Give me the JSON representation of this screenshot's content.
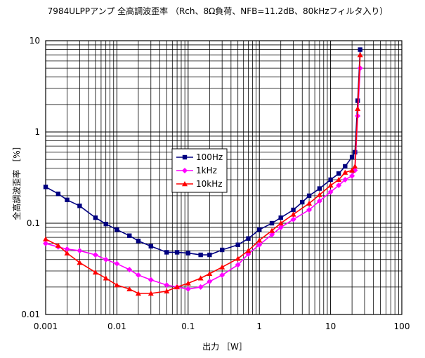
{
  "chart_data": {
    "type": "line",
    "title": "7984ULPPアンプ 全高調波歪率 （Rch、8Ω負荷、NFB=11.2dB、80kHzフィルタ入り）",
    "xlabel": "出力 ［W］",
    "ylabel": "全高調波歪率 ［%］",
    "x_scale": "log",
    "y_scale": "log",
    "xlim": [
      0.001,
      100
    ],
    "ylim": [
      0.01,
      10
    ],
    "x_ticks": [
      {
        "value": 0.001,
        "label": "0.001"
      },
      {
        "value": 0.01,
        "label": "0.01"
      },
      {
        "value": 0.1,
        "label": "0.1"
      },
      {
        "value": 1,
        "label": "1"
      },
      {
        "value": 10,
        "label": "10"
      },
      {
        "value": 100,
        "label": "100"
      }
    ],
    "y_ticks": [
      {
        "value": 10,
        "label": "10"
      },
      {
        "value": 1,
        "label": "1"
      },
      {
        "value": 0.1,
        "label": "0.1"
      },
      {
        "value": 0.01,
        "label": "0.01"
      }
    ],
    "grid": true,
    "legend_position": "center-left",
    "series": [
      {
        "name": "100Hz",
        "color": "#000080",
        "marker": "square",
        "points": [
          [
            0.001,
            0.25
          ],
          [
            0.0015,
            0.21
          ],
          [
            0.002,
            0.18
          ],
          [
            0.003,
            0.155
          ],
          [
            0.005,
            0.115
          ],
          [
            0.007,
            0.098
          ],
          [
            0.01,
            0.085
          ],
          [
            0.015,
            0.073
          ],
          [
            0.02,
            0.064
          ],
          [
            0.03,
            0.056
          ],
          [
            0.05,
            0.048
          ],
          [
            0.07,
            0.048
          ],
          [
            0.1,
            0.047
          ],
          [
            0.15,
            0.045
          ],
          [
            0.2,
            0.045
          ],
          [
            0.3,
            0.051
          ],
          [
            0.5,
            0.058
          ],
          [
            0.7,
            0.068
          ],
          [
            1,
            0.085
          ],
          [
            1.5,
            0.1
          ],
          [
            2,
            0.115
          ],
          [
            3,
            0.14
          ],
          [
            4,
            0.17
          ],
          [
            5,
            0.2
          ],
          [
            7,
            0.24
          ],
          [
            10,
            0.3
          ],
          [
            13,
            0.35
          ],
          [
            16,
            0.42
          ],
          [
            20,
            0.53
          ],
          [
            22,
            0.6
          ],
          [
            24,
            2.2
          ],
          [
            26,
            8.0
          ]
        ]
      },
      {
        "name": "1kHz",
        "color": "#ff00ff",
        "marker": "diamond",
        "points": [
          [
            0.001,
            0.06
          ],
          [
            0.0015,
            0.055
          ],
          [
            0.002,
            0.052
          ],
          [
            0.003,
            0.05
          ],
          [
            0.005,
            0.045
          ],
          [
            0.007,
            0.04
          ],
          [
            0.01,
            0.036
          ],
          [
            0.015,
            0.031
          ],
          [
            0.02,
            0.027
          ],
          [
            0.03,
            0.024
          ],
          [
            0.05,
            0.021
          ],
          [
            0.07,
            0.02
          ],
          [
            0.1,
            0.019
          ],
          [
            0.15,
            0.02
          ],
          [
            0.2,
            0.023
          ],
          [
            0.3,
            0.027
          ],
          [
            0.5,
            0.035
          ],
          [
            0.7,
            0.046
          ],
          [
            1,
            0.058
          ],
          [
            1.5,
            0.075
          ],
          [
            2,
            0.09
          ],
          [
            3,
            0.11
          ],
          [
            5,
            0.14
          ],
          [
            7,
            0.175
          ],
          [
            10,
            0.22
          ],
          [
            13,
            0.26
          ],
          [
            16,
            0.3
          ],
          [
            20,
            0.33
          ],
          [
            22,
            0.38
          ],
          [
            24,
            1.5
          ],
          [
            26,
            5.0
          ]
        ]
      },
      {
        "name": "10kHz",
        "color": "#ff0000",
        "marker": "triangle",
        "points": [
          [
            0.001,
            0.067
          ],
          [
            0.0015,
            0.057
          ],
          [
            0.002,
            0.047
          ],
          [
            0.003,
            0.037
          ],
          [
            0.005,
            0.029
          ],
          [
            0.007,
            0.025
          ],
          [
            0.01,
            0.021
          ],
          [
            0.015,
            0.019
          ],
          [
            0.02,
            0.017
          ],
          [
            0.03,
            0.017
          ],
          [
            0.05,
            0.018
          ],
          [
            0.07,
            0.02
          ],
          [
            0.1,
            0.022
          ],
          [
            0.15,
            0.025
          ],
          [
            0.2,
            0.028
          ],
          [
            0.3,
            0.033
          ],
          [
            0.5,
            0.041
          ],
          [
            0.7,
            0.05
          ],
          [
            1,
            0.065
          ],
          [
            1.5,
            0.083
          ],
          [
            2,
            0.1
          ],
          [
            3,
            0.125
          ],
          [
            5,
            0.165
          ],
          [
            7,
            0.205
          ],
          [
            10,
            0.26
          ],
          [
            13,
            0.3
          ],
          [
            16,
            0.36
          ],
          [
            20,
            0.38
          ],
          [
            22,
            0.42
          ],
          [
            24,
            1.8
          ],
          [
            26,
            7.0
          ]
        ]
      }
    ]
  }
}
